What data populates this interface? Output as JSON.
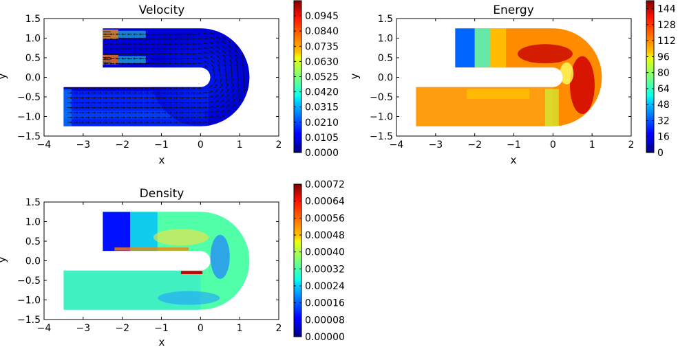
{
  "chart_data": [
    {
      "type": "heatmap",
      "title": "Velocity",
      "xlabel": "x",
      "ylabel": "y",
      "xlim": [
        -4,
        2
      ],
      "ylim": [
        -1.5,
        1.5
      ],
      "xticks": [
        -4,
        -3,
        -2,
        -1,
        0,
        1,
        2
      ],
      "yticks": [
        -1.5,
        -1.0,
        -0.5,
        0.0,
        0.5,
        1.0,
        1.5
      ],
      "xtick_labels": [
        "−4",
        "−3",
        "−2",
        "−1",
        "0",
        "1",
        "2"
      ],
      "ytick_labels": [
        "−1.5",
        "−1.0",
        "−0.5",
        "0.0",
        "0.5",
        "1.0",
        "1.5"
      ],
      "vector_field": true,
      "colorbar": {
        "min": 0.0,
        "max": 0.105,
        "ticks": [
          0.0,
          0.0105,
          0.021,
          0.0315,
          0.042,
          0.0525,
          0.063,
          0.0735,
          0.084,
          0.0945
        ],
        "tick_labels": [
          "0.0000",
          "0.0105",
          "0.0210",
          "0.0315",
          "0.0420",
          "0.0525",
          "0.0630",
          "0.0735",
          "0.0840",
          "0.0945"
        ]
      }
    },
    {
      "type": "heatmap",
      "title": "Energy",
      "xlabel": "x",
      "ylabel": "y",
      "xlim": [
        -4,
        2
      ],
      "ylim": [
        -1.5,
        1.5
      ],
      "xticks": [
        -4,
        -3,
        -2,
        -1,
        0,
        1,
        2
      ],
      "yticks": [
        -1.5,
        -1.0,
        -0.5,
        0.0,
        0.5,
        1.0,
        1.5
      ],
      "xtick_labels": [
        "−4",
        "−3",
        "−2",
        "−1",
        "0",
        "1",
        "2"
      ],
      "ytick_labels": [
        "−1.5",
        "−1.0",
        "−0.5",
        "0.0",
        "0.5",
        "1.0",
        "1.5"
      ],
      "vector_field": false,
      "colorbar": {
        "min": 0,
        "max": 152,
        "ticks": [
          0,
          16,
          32,
          48,
          64,
          80,
          96,
          112,
          128,
          144
        ],
        "tick_labels": [
          "0",
          "16",
          "32",
          "48",
          "64",
          "80",
          "96",
          "112",
          "128",
          "144"
        ]
      }
    },
    {
      "type": "heatmap",
      "title": "Density",
      "xlabel": "x",
      "ylabel": "y",
      "xlim": [
        -4,
        2
      ],
      "ylim": [
        -1.5,
        1.5
      ],
      "xticks": [
        -4,
        -3,
        -2,
        -1,
        0,
        1,
        2
      ],
      "yticks": [
        -1.5,
        -1.0,
        -0.5,
        0.0,
        0.5,
        1.0,
        1.5
      ],
      "xtick_labels": [
        "−4",
        "−3",
        "−2",
        "−1",
        "0",
        "1",
        "2"
      ],
      "ytick_labels": [
        "−1.5",
        "−1.0",
        "−0.5",
        "0.0",
        "0.5",
        "1.0",
        "1.5"
      ],
      "vector_field": false,
      "colorbar": {
        "min": 0.0,
        "max": 0.00072,
        "ticks": [
          0.0,
          8e-05,
          0.00016,
          0.00024,
          0.00032,
          0.0004,
          0.00048,
          0.00056,
          0.00064,
          0.00072
        ],
        "tick_labels": [
          "0.00000",
          "0.00008",
          "0.00016",
          "0.00024",
          "0.00032",
          "0.00040",
          "0.00048",
          "0.00056",
          "0.00064",
          "0.00072"
        ]
      }
    }
  ]
}
